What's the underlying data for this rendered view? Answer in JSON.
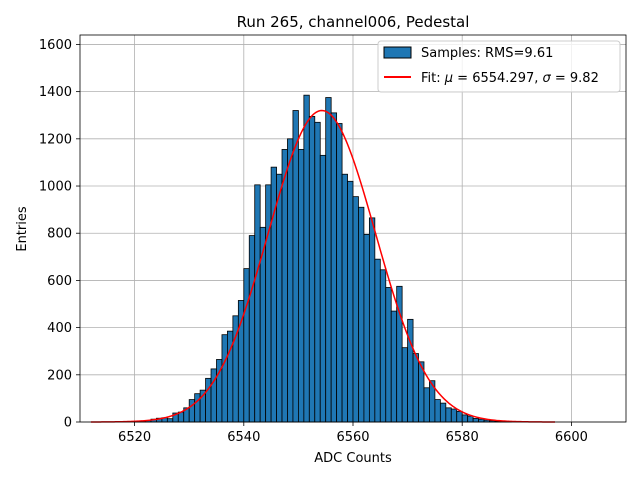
{
  "chart_data": {
    "type": "bar",
    "title": "Run 265, channel006, Pedestal",
    "xlabel": "ADC Counts",
    "ylabel": "Entries",
    "xlim": [
      6510,
      6610
    ],
    "ylim": [
      0,
      1640
    ],
    "xticks": [
      6520,
      6540,
      6560,
      6580,
      6600
    ],
    "yticks": [
      0,
      200,
      400,
      600,
      800,
      1000,
      1200,
      1400,
      1600
    ],
    "grid": true,
    "legend_position": "top-right",
    "histogram": {
      "name": "Samples: RMS=9.61",
      "color": "#1f77b4",
      "edge_color": "#000000",
      "bin_width": 1,
      "bin_starts": [
        6520,
        6521,
        6522,
        6523,
        6524,
        6525,
        6526,
        6527,
        6528,
        6529,
        6530,
        6531,
        6532,
        6533,
        6534,
        6535,
        6536,
        6537,
        6538,
        6539,
        6540,
        6541,
        6542,
        6543,
        6544,
        6545,
        6546,
        6547,
        6548,
        6549,
        6550,
        6551,
        6552,
        6553,
        6554,
        6555,
        6556,
        6557,
        6558,
        6559,
        6560,
        6561,
        6562,
        6563,
        6564,
        6565,
        6566,
        6567,
        6568,
        6569,
        6570,
        6571,
        6572,
        6573,
        6574,
        6575,
        6576,
        6577,
        6578,
        6579,
        6580,
        6581,
        6582,
        6583,
        6584,
        6585,
        6586,
        6587,
        6588
      ],
      "counts": [
        2,
        4,
        6,
        12,
        16,
        18,
        14,
        38,
        42,
        60,
        95,
        120,
        135,
        185,
        225,
        265,
        370,
        385,
        450,
        515,
        650,
        790,
        1005,
        825,
        1005,
        1080,
        1050,
        1155,
        1200,
        1320,
        1155,
        1385,
        1295,
        1270,
        1130,
        1375,
        1310,
        1265,
        1050,
        1020,
        955,
        910,
        795,
        865,
        690,
        645,
        570,
        470,
        575,
        315,
        435,
        290,
        255,
        145,
        175,
        95,
        80,
        60,
        55,
        45,
        30,
        25,
        15,
        12,
        8,
        5,
        3,
        2,
        1
      ]
    },
    "fit": {
      "name": "Fit: μ = 6554.297, σ = 9.82",
      "label_prefix": "Fit: ",
      "mu_symbol": "μ",
      "mu_text": " = 6554.297, ",
      "sigma_symbol": "σ",
      "sigma_text": " = 9.82",
      "color": "#ff0000",
      "mu": 6554.297,
      "sigma": 9.82,
      "amplitude": 1320,
      "x_range": [
        6512,
        6597
      ]
    }
  }
}
